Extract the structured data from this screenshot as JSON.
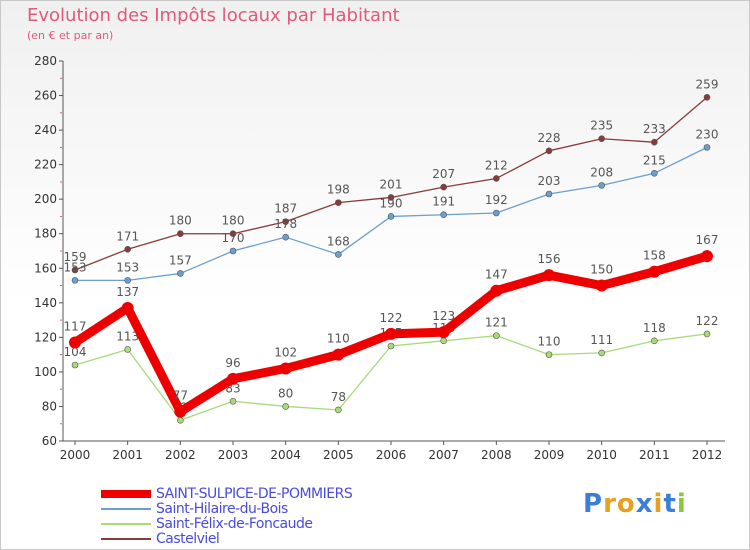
{
  "title": "Evolution des Impôts locaux par Habitant",
  "subtitle": "(en € et par an)",
  "logo": {
    "text": "Proxiti",
    "letter_colors": [
      "#3a7fd6",
      "#e8a020",
      "#e8a020",
      "#3a7fd6",
      "#e8a020",
      "#3a7fd6",
      "#8cc63f"
    ]
  },
  "chart_data": {
    "type": "line",
    "x": [
      2000,
      2001,
      2002,
      2003,
      2004,
      2005,
      2006,
      2007,
      2008,
      2009,
      2010,
      2011,
      2012
    ],
    "ylim": [
      60,
      280
    ],
    "yticks": [
      60,
      80,
      100,
      120,
      140,
      160,
      180,
      200,
      220,
      240,
      260,
      280
    ],
    "grid": false,
    "legend_position": "bottom-left",
    "series": [
      {
        "name": "SAINT-SULPICE-DE-POMMIERS",
        "color": "#ee0000",
        "legend_text_color": "#4a4ae0",
        "values": [
          117,
          137,
          77,
          96,
          102,
          110,
          122,
          123,
          147,
          156,
          150,
          158,
          167
        ]
      },
      {
        "name": "Saint-Hilaire-du-Bois",
        "color": "#6a9fd0",
        "legend_text_color": "#4a4ae0",
        "values": [
          153,
          153,
          157,
          170,
          178,
          168,
          190,
          191,
          192,
          203,
          208,
          215,
          230
        ]
      },
      {
        "name": "Saint-Félix-de-Foncaude",
        "color": "#a8da78",
        "legend_text_color": "#4a4ae0",
        "values": [
          104,
          113,
          72,
          83,
          80,
          78,
          115,
          118,
          121,
          110,
          111,
          118,
          122
        ]
      },
      {
        "name": "Castelviel",
        "color": "#8a3a3a",
        "legend_text_color": "#4a4ae0",
        "values": [
          159,
          171,
          180,
          180,
          187,
          198,
          201,
          207,
          212,
          228,
          235,
          233,
          259
        ]
      }
    ]
  }
}
